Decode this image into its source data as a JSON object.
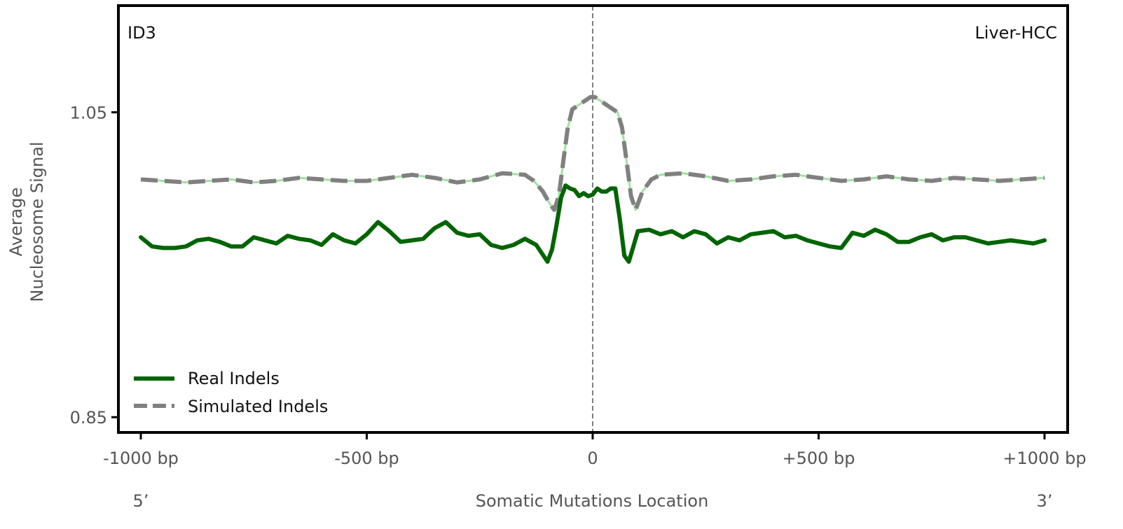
{
  "chart_data": {
    "type": "line",
    "title": "",
    "annotation_left": "ID3",
    "annotation_right": "Liver-HCC",
    "xlabel": "Somatic Mutations Location",
    "ylabel_line1": "Average",
    "ylabel_line2": "Nucleosome Signal",
    "end_label_left": "5’",
    "end_label_right": "3’",
    "xlim": [
      -1000,
      1000
    ],
    "ylim": [
      0.84,
      1.12
    ],
    "x_ticks": [
      {
        "value": -1000,
        "label": "-1000 bp"
      },
      {
        "value": -500,
        "label": "-500 bp"
      },
      {
        "value": 0,
        "label": "0"
      },
      {
        "value": 500,
        "label": "+500 bp"
      },
      {
        "value": 1000,
        "label": "+1000 bp"
      }
    ],
    "y_ticks": [
      {
        "value": 1.05,
        "label": "1.05"
      },
      {
        "value": 0.85,
        "label": "0.85"
      }
    ],
    "center_line": {
      "x": 0,
      "style": "dashed",
      "color": "#7f7f7f"
    },
    "legend": {
      "position": "lower-left"
    },
    "series": [
      {
        "name": "Real Indels",
        "color": "#006400",
        "style": "solid",
        "x": [
          -1000,
          -975,
          -950,
          -925,
          -900,
          -875,
          -850,
          -825,
          -800,
          -775,
          -750,
          -725,
          -700,
          -675,
          -650,
          -625,
          -600,
          -575,
          -550,
          -525,
          -500,
          -475,
          -450,
          -425,
          -400,
          -375,
          -350,
          -325,
          -300,
          -275,
          -250,
          -225,
          -200,
          -175,
          -150,
          -125,
          -100,
          -90,
          -80,
          -70,
          -60,
          -50,
          -40,
          -30,
          -20,
          -10,
          0,
          10,
          20,
          30,
          40,
          50,
          60,
          70,
          80,
          90,
          100,
          125,
          150,
          175,
          200,
          225,
          250,
          275,
          300,
          325,
          350,
          375,
          400,
          425,
          450,
          475,
          500,
          525,
          550,
          575,
          600,
          625,
          650,
          675,
          700,
          725,
          750,
          775,
          800,
          825,
          850,
          875,
          900,
          925,
          950,
          975,
          1000
        ],
        "values": [
          0.968,
          0.962,
          0.961,
          0.961,
          0.962,
          0.966,
          0.967,
          0.965,
          0.962,
          0.962,
          0.968,
          0.966,
          0.964,
          0.969,
          0.967,
          0.966,
          0.963,
          0.97,
          0.966,
          0.964,
          0.97,
          0.978,
          0.972,
          0.965,
          0.966,
          0.967,
          0.974,
          0.978,
          0.971,
          0.969,
          0.97,
          0.963,
          0.961,
          0.963,
          0.967,
          0.963,
          0.952,
          0.96,
          0.976,
          0.994,
          1.002,
          1.0,
          0.999,
          0.995,
          0.997,
          0.995,
          0.996,
          1.0,
          0.998,
          0.998,
          1.0,
          1.0,
          0.98,
          0.956,
          0.952,
          0.962,
          0.972,
          0.973,
          0.97,
          0.972,
          0.968,
          0.972,
          0.97,
          0.964,
          0.968,
          0.966,
          0.97,
          0.971,
          0.972,
          0.968,
          0.969,
          0.966,
          0.964,
          0.962,
          0.961,
          0.971,
          0.969,
          0.973,
          0.97,
          0.965,
          0.965,
          0.968,
          0.97,
          0.966,
          0.968,
          0.968,
          0.966,
          0.964,
          0.965,
          0.966,
          0.965,
          0.964,
          0.966
        ]
      },
      {
        "name": "Simulated Indels",
        "color": "#808080",
        "style": "dashed",
        "x": [
          -1000,
          -950,
          -900,
          -850,
          -800,
          -750,
          -700,
          -650,
          -600,
          -550,
          -500,
          -450,
          -400,
          -350,
          -300,
          -250,
          -200,
          -150,
          -130,
          -110,
          -95,
          -85,
          -75,
          -65,
          -55,
          -45,
          -35,
          -25,
          -15,
          -5,
          5,
          15,
          25,
          35,
          45,
          55,
          65,
          75,
          85,
          95,
          110,
          130,
          150,
          200,
          250,
          300,
          350,
          400,
          450,
          500,
          550,
          600,
          650,
          700,
          750,
          800,
          850,
          900,
          950,
          1000
        ],
        "values": [
          1.006,
          1.005,
          1.004,
          1.005,
          1.006,
          1.004,
          1.005,
          1.007,
          1.006,
          1.005,
          1.005,
          1.007,
          1.009,
          1.007,
          1.004,
          1.006,
          1.01,
          1.009,
          1.005,
          0.998,
          0.99,
          0.986,
          0.995,
          1.018,
          1.04,
          1.052,
          1.054,
          1.056,
          1.058,
          1.06,
          1.06,
          1.058,
          1.056,
          1.054,
          1.052,
          1.05,
          1.04,
          1.018,
          0.995,
          0.986,
          0.998,
          1.006,
          1.009,
          1.01,
          1.008,
          1.005,
          1.006,
          1.008,
          1.009,
          1.007,
          1.005,
          1.006,
          1.008,
          1.006,
          1.005,
          1.007,
          1.006,
          1.005,
          1.006,
          1.007
        ]
      }
    ]
  }
}
